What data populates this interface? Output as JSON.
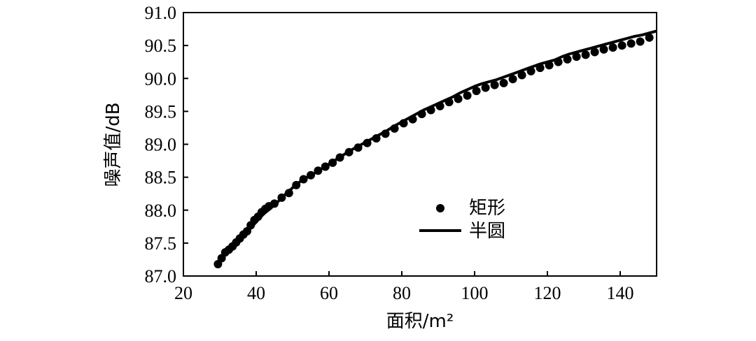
{
  "chart_data": {
    "type": "scatter",
    "title": "",
    "xlabel": "面积/m²",
    "ylabel": "噪声值/dB",
    "xlim": [
      20,
      150
    ],
    "ylim": [
      87.0,
      91.0
    ],
    "xticks": [
      "20",
      "40",
      "60",
      "80",
      "100",
      "120",
      "140"
    ],
    "yticks": [
      "87.0",
      "87.5",
      "88.0",
      "88.5",
      "89.0",
      "89.5",
      "90.0",
      "90.5",
      "91.0"
    ],
    "grid": false,
    "legend_position": "center-right",
    "series": [
      {
        "name": "矩形",
        "style": "markers",
        "color": "#000000",
        "x": [
          29.5,
          30.5,
          31.5,
          32.5,
          33.5,
          34.5,
          35.5,
          36.5,
          37.5,
          38.5,
          39.5,
          40.5,
          41.5,
          42.5,
          43.5,
          45,
          47,
          49,
          51,
          53,
          55,
          57,
          59,
          61,
          63,
          65.5,
          68,
          70.5,
          73,
          75.5,
          78,
          80.5,
          83,
          85.5,
          88,
          90.5,
          93,
          95.5,
          98,
          100.5,
          103,
          105.5,
          108,
          110.5,
          113,
          115.5,
          118,
          120.5,
          123,
          125.5,
          128,
          130.5,
          133,
          135.5,
          138,
          140.5,
          143,
          145.5,
          148
        ],
        "y": [
          87.18,
          87.27,
          87.36,
          87.4,
          87.45,
          87.51,
          87.57,
          87.63,
          87.68,
          87.77,
          87.85,
          87.9,
          87.97,
          88.02,
          88.06,
          88.1,
          88.19,
          88.26,
          88.38,
          88.47,
          88.53,
          88.6,
          88.66,
          88.72,
          88.8,
          88.88,
          88.95,
          89.02,
          89.09,
          89.16,
          89.24,
          89.32,
          89.38,
          89.46,
          89.52,
          89.58,
          89.64,
          89.69,
          89.74,
          89.81,
          89.86,
          89.9,
          89.93,
          89.99,
          90.05,
          90.11,
          90.16,
          90.2,
          90.25,
          90.29,
          90.33,
          90.36,
          90.4,
          90.44,
          90.47,
          90.5,
          90.53,
          90.56,
          90.62
        ]
      },
      {
        "name": "半圆",
        "style": "line",
        "color": "#000000",
        "x": [
          29.5,
          30,
          32,
          34,
          36,
          38,
          40,
          42,
          44,
          46,
          48,
          50,
          52,
          54,
          56,
          58,
          60,
          62,
          64,
          66,
          68,
          70,
          72,
          74,
          76,
          78,
          80,
          82,
          84,
          86,
          88,
          90,
          92,
          94,
          96,
          98,
          100,
          102,
          104,
          106,
          108,
          110,
          112,
          114,
          116,
          118,
          120,
          122,
          124,
          126,
          128,
          130,
          132,
          134,
          136,
          138,
          140,
          142,
          144,
          146,
          148,
          150
        ],
        "y": [
          87.17,
          87.22,
          87.35,
          87.47,
          87.58,
          87.7,
          87.82,
          87.94,
          88.03,
          88.13,
          88.24,
          88.34,
          88.43,
          88.5,
          88.56,
          88.63,
          88.7,
          88.77,
          88.84,
          88.91,
          88.97,
          89.03,
          89.09,
          89.15,
          89.21,
          89.28,
          89.34,
          89.4,
          89.46,
          89.52,
          89.57,
          89.62,
          89.67,
          89.72,
          89.78,
          89.83,
          89.88,
          89.92,
          89.95,
          89.98,
          90.02,
          90.06,
          90.1,
          90.14,
          90.18,
          90.22,
          90.25,
          90.28,
          90.33,
          90.37,
          90.4,
          90.43,
          90.46,
          90.49,
          90.52,
          90.55,
          90.58,
          90.61,
          90.64,
          90.66,
          90.69,
          90.72
        ]
      }
    ]
  }
}
